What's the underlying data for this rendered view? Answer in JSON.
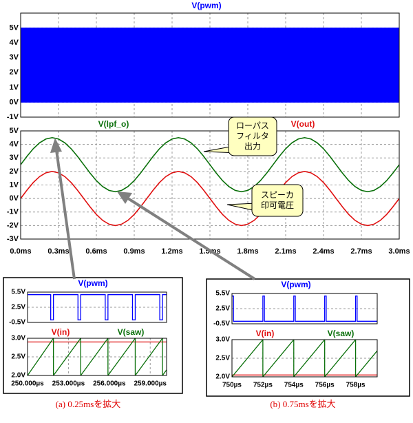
{
  "chart_data": [
    {
      "type": "range",
      "xlim": [
        0,
        3
      ],
      "ylim": [
        -1,
        6
      ],
      "yticks": [
        {
          "value": -1,
          "label": "-1V"
        },
        {
          "value": 0,
          "label": "0V"
        },
        {
          "value": 1,
          "label": "1V"
        },
        {
          "value": 2,
          "label": "2V"
        },
        {
          "value": 3,
          "label": "3V"
        },
        {
          "value": 4,
          "label": "4V"
        },
        {
          "value": 5,
          "label": "5V"
        }
      ],
      "grid": true,
      "series": [
        {
          "name": "V(pwm)",
          "color": "#0000ff",
          "x": [
            0,
            3
          ],
          "low": [
            0,
            0
          ],
          "high": [
            5,
            5
          ]
        }
      ]
    },
    {
      "type": "line",
      "xlim": [
        0,
        3
      ],
      "ylim": [
        -3,
        5
      ],
      "xticks": [
        {
          "value": 0,
          "label": "0.0ms"
        },
        {
          "value": 0.3,
          "label": "0.3ms"
        },
        {
          "value": 0.6,
          "label": "0.6ms"
        },
        {
          "value": 0.9,
          "label": "0.9ms"
        },
        {
          "value": 1.2,
          "label": "1.2ms"
        },
        {
          "value": 1.5,
          "label": "1.5ms"
        },
        {
          "value": 1.8,
          "label": "1.8ms"
        },
        {
          "value": 2.1,
          "label": "2.1ms"
        },
        {
          "value": 2.4,
          "label": "2.4ms"
        },
        {
          "value": 2.7,
          "label": "2.7ms"
        },
        {
          "value": 3.0,
          "label": "3.0ms"
        }
      ],
      "yticks": [
        {
          "value": -3,
          "label": "-3V"
        },
        {
          "value": -2,
          "label": "-2V"
        },
        {
          "value": -1,
          "label": "-1V"
        },
        {
          "value": 0,
          "label": "0V"
        },
        {
          "value": 1,
          "label": "1V"
        },
        {
          "value": 2,
          "label": "2V"
        },
        {
          "value": 3,
          "label": "3V"
        },
        {
          "value": 4,
          "label": "4V"
        },
        {
          "value": 5,
          "label": "5V"
        }
      ],
      "grid": true,
      "x": [
        0,
        0.05,
        0.1,
        0.15,
        0.2,
        0.25,
        0.3,
        0.35,
        0.4,
        0.45,
        0.5,
        0.55,
        0.6,
        0.65,
        0.7,
        0.75,
        0.8,
        0.85,
        0.9,
        0.95,
        1,
        1.05,
        1.1,
        1.15,
        1.2,
        1.25,
        1.3,
        1.35,
        1.4,
        1.45,
        1.5,
        1.55,
        1.6,
        1.65,
        1.7,
        1.75,
        1.8,
        1.85,
        1.9,
        1.95,
        2,
        2.05,
        2.1,
        2.15,
        2.2,
        2.25,
        2.3,
        2.35,
        2.4,
        2.45,
        2.5,
        2.55,
        2.6,
        2.65,
        2.7,
        2.75,
        2.8,
        2.85,
        2.9,
        2.95,
        3
      ],
      "series": [
        {
          "name": "V(lpf_o)",
          "color": "#0a700a",
          "values": [
            2.5,
            3.12,
            3.68,
            4.12,
            4.4,
            4.5,
            4.4,
            4.12,
            3.68,
            3.12,
            2.5,
            1.88,
            1.32,
            0.88,
            0.6,
            0.5,
            0.6,
            0.88,
            1.32,
            1.88,
            2.5,
            3.12,
            3.68,
            4.12,
            4.4,
            4.5,
            4.4,
            4.12,
            3.68,
            3.12,
            2.5,
            1.88,
            1.32,
            0.88,
            0.6,
            0.5,
            0.6,
            0.88,
            1.32,
            1.88,
            2.5,
            3.12,
            3.68,
            4.12,
            4.4,
            4.5,
            4.4,
            4.12,
            3.68,
            3.12,
            2.5,
            1.88,
            1.32,
            0.88,
            0.6,
            0.5,
            0.6,
            0.88,
            1.32,
            1.88,
            2.5
          ]
        },
        {
          "name": "V(out)",
          "color": "#e01010",
          "values": [
            0,
            0.62,
            1.18,
            1.62,
            1.9,
            2,
            1.9,
            1.62,
            1.18,
            0.62,
            0,
            -0.62,
            -1.18,
            -1.62,
            -1.9,
            -2,
            -1.9,
            -1.62,
            -1.18,
            -0.62,
            0,
            0.62,
            1.18,
            1.62,
            1.9,
            2,
            1.9,
            1.62,
            1.18,
            0.62,
            0,
            -0.62,
            -1.18,
            -1.62,
            -1.9,
            -2,
            -1.9,
            -1.62,
            -1.18,
            -0.62,
            0,
            0.62,
            1.18,
            1.62,
            1.9,
            2,
            1.9,
            1.62,
            1.18,
            0.62,
            0,
            -0.62,
            -1.18,
            -1.62,
            -1.9,
            -2,
            -1.9,
            -1.62,
            -1.18,
            -0.62,
            0
          ]
        }
      ],
      "annotations": [
        [
          "ローパス",
          "フィルタ",
          "出力"
        ],
        [
          "スピーカ",
          "印可電圧"
        ]
      ]
    },
    {
      "type": "line",
      "xlim": [
        250,
        260.2
      ],
      "ylim": [
        -0.5,
        5.5
      ],
      "yticks": [
        {
          "value": -0.5,
          "label": "-0.5V"
        },
        {
          "value": 2.5,
          "label": "2.5V"
        },
        {
          "value": 5.5,
          "label": "5.5V"
        }
      ],
      "grid": true,
      "series": [
        {
          "name": "V(pwm)",
          "color": "#0000ff",
          "x": [
            250,
            251.7,
            251.7,
            251.9,
            251.9,
            253.7,
            253.7,
            253.9,
            253.9,
            255.7,
            255.7,
            255.9,
            255.9,
            257.7,
            257.7,
            257.9,
            257.9,
            259.7,
            259.7,
            259.9,
            259.9,
            260.2
          ],
          "values": [
            5,
            5,
            0,
            0,
            5,
            5,
            0,
            0,
            5,
            5,
            0,
            0,
            5,
            5,
            0,
            0,
            5,
            5,
            0,
            0,
            5,
            5
          ]
        }
      ]
    },
    {
      "type": "line",
      "xlim": [
        250,
        260.2
      ],
      "ylim": [
        2.0,
        3.0
      ],
      "xticks": [
        {
          "value": 250,
          "label": "250.000µs"
        },
        {
          "value": 253,
          "label": "253.000µs"
        },
        {
          "value": 256,
          "label": "256.000µs"
        },
        {
          "value": 259,
          "label": "259.000µs"
        }
      ],
      "yticks": [
        {
          "value": 2.0,
          "label": "2.0V"
        },
        {
          "value": 2.5,
          "label": "2.5V"
        },
        {
          "value": 3.0,
          "label": "3.0V"
        }
      ],
      "grid": true,
      "series": [
        {
          "name": "V(in)",
          "color": "#e01010",
          "x": [
            250,
            260.2
          ],
          "values": [
            2.9,
            2.9
          ]
        },
        {
          "name": "V(saw)",
          "color": "#0a700a",
          "x": [
            250,
            251.9,
            251.9,
            253.9,
            253.9,
            255.9,
            255.9,
            257.9,
            257.9,
            259.9,
            259.9,
            260.2
          ],
          "values": [
            2.0,
            3.0,
            2.0,
            3.0,
            2.0,
            3.0,
            2.0,
            3.0,
            2.0,
            3.0,
            2.0,
            2.15
          ]
        }
      ],
      "caption": "(a) 0.25msを拡大"
    },
    {
      "type": "line",
      "xlim": [
        750,
        759.4
      ],
      "ylim": [
        -0.5,
        5.5
      ],
      "yticks": [
        {
          "value": -0.5,
          "label": "-0.5V"
        },
        {
          "value": 2.5,
          "label": "2.5V"
        },
        {
          "value": 5.5,
          "label": "5.5V"
        }
      ],
      "grid": true,
      "series": [
        {
          "name": "V(pwm)",
          "color": "#0000ff",
          "x": [
            750,
            750.1,
            750.1,
            752,
            752,
            752.1,
            752.1,
            754,
            754,
            754.1,
            754.1,
            756,
            756,
            756.1,
            756.1,
            758,
            758,
            758.1,
            758.1,
            759.4
          ],
          "values": [
            5,
            5,
            0,
            0,
            5,
            5,
            0,
            0,
            5,
            5,
            0,
            0,
            5,
            5,
            0,
            0,
            5,
            5,
            0,
            0
          ]
        }
      ]
    },
    {
      "type": "line",
      "xlim": [
        750,
        759.4
      ],
      "ylim": [
        2.0,
        3.0
      ],
      "xticks": [
        {
          "value": 750,
          "label": "750µs"
        },
        {
          "value": 752,
          "label": "752µs"
        },
        {
          "value": 754,
          "label": "754µs"
        },
        {
          "value": 756,
          "label": "756µs"
        },
        {
          "value": 758,
          "label": "758µs"
        }
      ],
      "yticks": [
        {
          "value": 2.0,
          "label": "2.0V"
        },
        {
          "value": 2.5,
          "label": "2.5V"
        },
        {
          "value": 3.0,
          "label": "3.0V"
        }
      ],
      "grid": true,
      "series": [
        {
          "name": "V(in)",
          "color": "#e01010",
          "x": [
            750,
            759.4
          ],
          "values": [
            2.05,
            2.05
          ]
        },
        {
          "name": "V(saw)",
          "color": "#0a700a",
          "x": [
            750,
            752,
            752,
            754,
            754,
            756,
            756,
            758,
            758,
            759.4
          ],
          "values": [
            2.0,
            3.0,
            2.0,
            3.0,
            2.0,
            3.0,
            2.0,
            3.0,
            2.0,
            2.7
          ]
        }
      ],
      "caption": "(b) 0.75msを拡大"
    }
  ]
}
